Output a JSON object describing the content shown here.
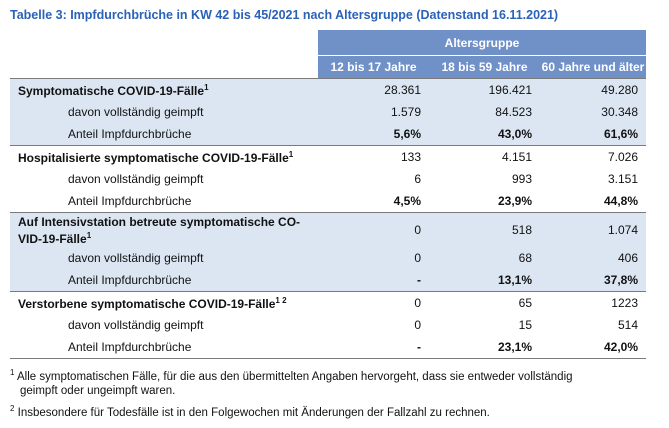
{
  "title": "Tabelle 3: Impfdurchbrüche in KW 42 bis 45/2021 nach Altersgruppe (Datenstand 16.11.2021)",
  "group_header": "Altersgruppe",
  "columns": [
    "12 bis 17 Jahre",
    "18 bis 59 Jahre",
    "60 Jahre und älter"
  ],
  "sections": [
    {
      "label": "Symptomatische COVID-19-Fälle",
      "sup": "1",
      "values": [
        "28.361",
        "196.421",
        "49.280"
      ],
      "sub_label": "davon vollständig geimpft",
      "sub_values": [
        "1.579",
        "84.523",
        "30.348"
      ],
      "share_label": "Anteil Impfdurchbrüche",
      "share_values": [
        "5,6%",
        "43,0%",
        "61,6%"
      ]
    },
    {
      "label": "Hospitalisierte symptomatische COVID-19-Fälle",
      "sup": "1",
      "values": [
        "133",
        "4.151",
        "7.026"
      ],
      "sub_label": "davon vollständig geimpft",
      "sub_values": [
        "6",
        "993",
        "3.151"
      ],
      "share_label": "Anteil Impfdurchbrüche",
      "share_values": [
        "4,5%",
        "23,9%",
        "44,8%"
      ]
    },
    {
      "label_line1": "Auf Intensivstation betreute symptomatische CO-",
      "label_line2": "VID-19-Fälle",
      "sup": "1",
      "values": [
        "0",
        "518",
        "1.074"
      ],
      "sub_label": "davon vollständig geimpft",
      "sub_values": [
        "0",
        "68",
        "406"
      ],
      "share_label": "Anteil Impfdurchbrüche",
      "share_values": [
        "-",
        "13,1%",
        "37,8%"
      ]
    },
    {
      "label": "Verstorbene symptomatische COVID-19-Fälle",
      "sup": "1 2",
      "values": [
        "0",
        "65",
        "1223"
      ],
      "sub_label": "davon vollständig geimpft",
      "sub_values": [
        "0",
        "15",
        "514"
      ],
      "share_label": "Anteil Impfdurchbrüche",
      "share_values": [
        "-",
        "23,1%",
        "42,0%"
      ]
    }
  ],
  "footnotes": [
    {
      "mark": "1",
      "line1": " Alle symptomatischen Fälle, für die aus den übermittelten Angaben hervorgeht, dass sie entweder vollständig",
      "line2": "geimpft oder ungeimpft waren."
    },
    {
      "mark": "2",
      "line1": " Insbesondere für Todesfälle ist in den Folgewochen mit Änderungen der Fallzahl zu rechnen."
    }
  ],
  "colors": {
    "title": "#2a62b8",
    "header_bg": "#7090c8",
    "shade_bg": "#dce6f3"
  }
}
